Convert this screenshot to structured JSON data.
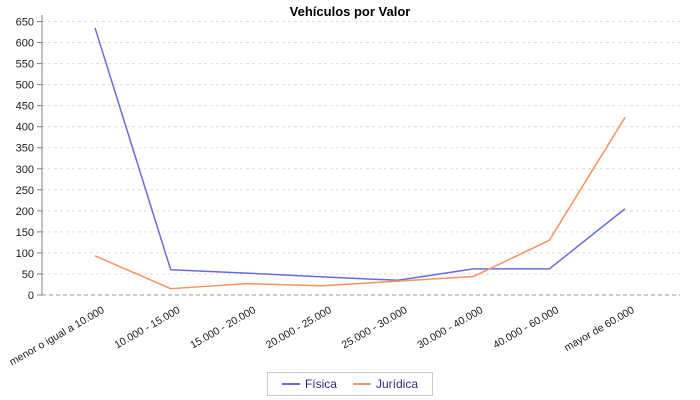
{
  "chart_data": {
    "type": "line",
    "title": "Vehículos por Valor",
    "categories": [
      "menor o igual a 10.000",
      "10.000 - 15.000",
      "15.000 - 20.000",
      "20.000 - 25.000",
      "25.000 - 30.000",
      "30.000 - 40.000",
      "40.000 - 60.000",
      "mayor de 60.000"
    ],
    "series": [
      {
        "name": "Física",
        "color": "#6b6bd8",
        "values": [
          635,
          60,
          52,
          43,
          35,
          62,
          62,
          205
        ]
      },
      {
        "name": "Jurídica",
        "color": "#fa9161",
        "values": [
          93,
          15,
          27,
          22,
          33,
          44,
          130,
          422
        ]
      }
    ],
    "xlabel": "",
    "ylabel": "",
    "ylim": [
      0,
      650
    ],
    "ytick_step": 50,
    "grid": true,
    "legend_position": "bottom"
  },
  "style": {
    "grid_color": "#dcdcdc",
    "zero_line_color": "#999999",
    "axis_color": "#808080",
    "tick_label_color": "#1a1a1a",
    "legend_text_color": "#3a2580",
    "legend_border_color": "#cccccc",
    "background": "#ffffff"
  }
}
